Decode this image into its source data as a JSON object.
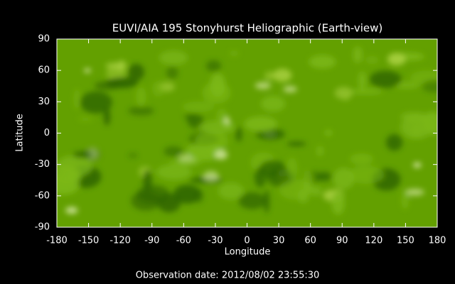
{
  "chart_data": {
    "type": "image",
    "title": "EUVI/AIA 195 Stonyhurst Heliographic (Earth-view)",
    "x_label": "Longitude",
    "y_label": "Latitude",
    "footer": "Observation date: 2012/08/02 23:55:30",
    "xlim": [
      -180,
      180
    ],
    "xticks": [
      -180,
      -150,
      -120,
      -90,
      -60,
      -30,
      0,
      30,
      60,
      90,
      120,
      150,
      180
    ],
    "ylim": [
      -90,
      90
    ],
    "yticks": [
      -90,
      -60,
      -30,
      0,
      30,
      60,
      90
    ],
    "color": "#63a000"
  }
}
